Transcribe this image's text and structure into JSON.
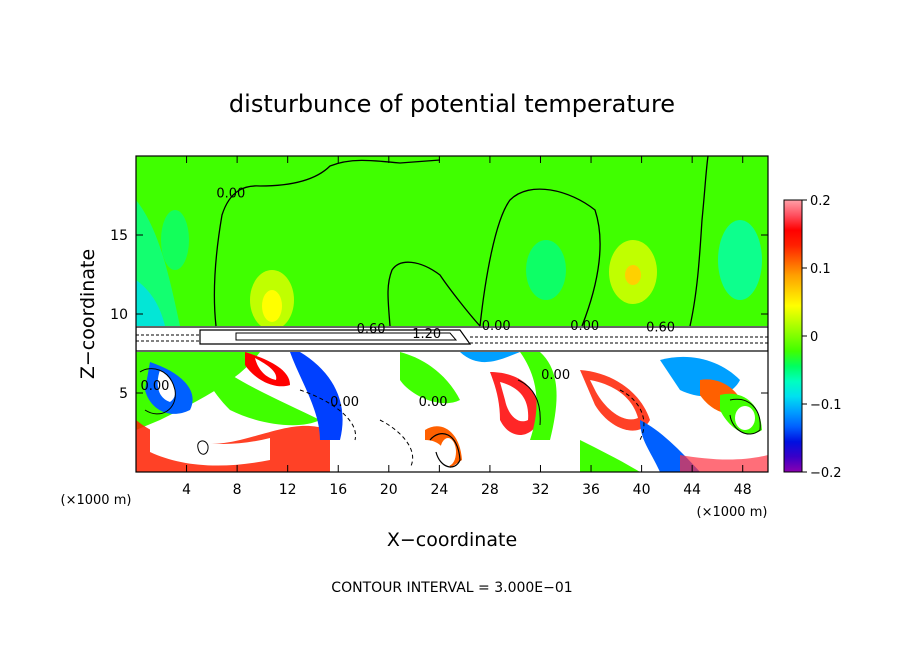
{
  "chart_data": {
    "type": "heatmap",
    "title": "disturbunce of potential temperature",
    "xlabel": "X−coordinate",
    "ylabel": "Z−coordinate",
    "x_unit": "(×1000 m)",
    "x_unit_right": "(×1000 m)",
    "xlim": [
      0,
      50
    ],
    "ylim": [
      0,
      20
    ],
    "xticks": [
      4,
      8,
      12,
      16,
      20,
      24,
      28,
      32,
      36,
      40,
      44,
      48
    ],
    "yticks": [
      5,
      10,
      15
    ],
    "footer": "CONTOUR INTERVAL = 3.000E−01",
    "colorbar": {
      "range": [
        -0.2,
        0.2
      ],
      "tick_labels": [
        "0.2",
        "0.1",
        "0",
        "−0.1",
        "−0.2"
      ],
      "tick_values": [
        0.2,
        0.1,
        0,
        -0.1,
        -0.2
      ],
      "colors": [
        "#8a00b0",
        "#3a00c8",
        "#0010e0",
        "#0060ff",
        "#00a0ff",
        "#00e0f0",
        "#00ffc0",
        "#00ff60",
        "#40ff00",
        "#80ff00",
        "#c0ff00",
        "#ffff00",
        "#ffd000",
        "#ffa000",
        "#ff6000",
        "#ff2000",
        "#ff0000",
        "#ff5060",
        "#ffa0a8"
      ]
    },
    "contour_labels": [
      {
        "text": "0.00",
        "x": 7.5,
        "z": 17.7
      },
      {
        "text": "0.60",
        "x": 18.6,
        "z": 9.1
      },
      {
        "text": "1.20",
        "x": 23.0,
        "z": 8.8
      },
      {
        "text": "0.00",
        "x": 28.5,
        "z": 9.3
      },
      {
        "text": "0.00",
        "x": 35.5,
        "z": 9.3
      },
      {
        "text": "0.60",
        "x": 41.5,
        "z": 9.2
      },
      {
        "text": "0.00",
        "x": 1.5,
        "z": 5.5
      },
      {
        "text": "0.00",
        "x": 16.5,
        "z": 4.5
      },
      {
        "text": "0.00",
        "x": 23.5,
        "z": 4.5
      },
      {
        "text": "0.00",
        "x": 33.2,
        "z": 6.2
      }
    ]
  }
}
